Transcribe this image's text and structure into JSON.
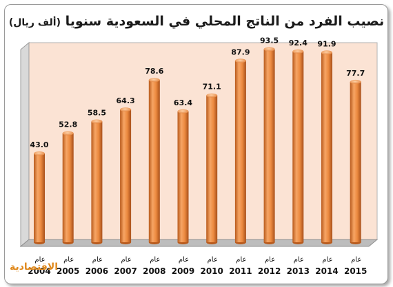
{
  "title": {
    "main": "نصيب الفرد من الناتج المحلي في السعودية سنويا",
    "unit": "(ألف ريال)"
  },
  "chart_data": {
    "type": "bar",
    "title": "نصيب الفرد من الناتج المحلي في السعودية سنويا (ألف ريال)",
    "category_prefix": "عام",
    "categories": [
      "2004",
      "2005",
      "2006",
      "2007",
      "2008",
      "2009",
      "2010",
      "2011",
      "2012",
      "2013",
      "2014",
      "2015"
    ],
    "values": [
      43.0,
      52.8,
      58.5,
      64.3,
      78.6,
      63.4,
      71.1,
      87.9,
      93.5,
      92.4,
      91.9,
      77.7
    ],
    "value_labels": [
      "43.0",
      "52.8",
      "58.5",
      "64.3",
      "78.6",
      "63.4",
      "71.1",
      "87.9",
      "93.5",
      "92.4",
      "91.9",
      "77.7"
    ],
    "ylim": [
      0,
      100
    ],
    "grid": false,
    "bar_color": "#e8873a",
    "plot_background": "#fbe3d4"
  },
  "logo": {
    "text": "الاقتصادية"
  }
}
